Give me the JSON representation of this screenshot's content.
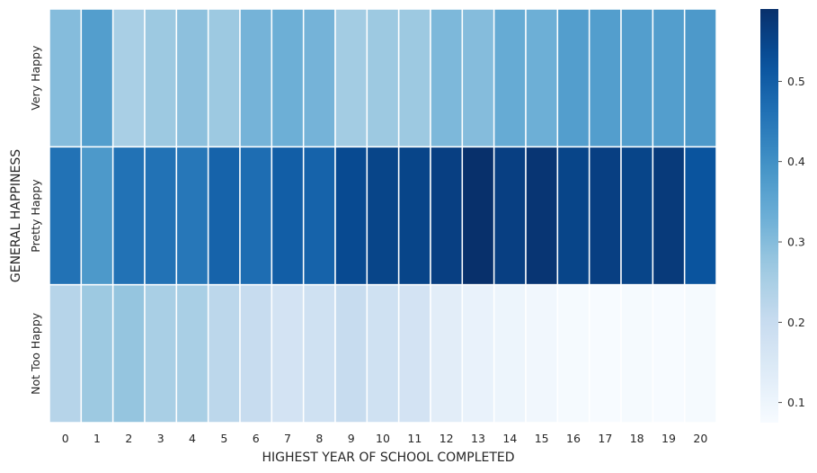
{
  "chart_data": {
    "type": "heatmap",
    "title": "",
    "xlabel": "HIGHEST YEAR OF SCHOOL COMPLETED",
    "ylabel": "GENERAL HAPPINESS",
    "x_categories": [
      "0",
      "1",
      "2",
      "3",
      "4",
      "5",
      "6",
      "7",
      "8",
      "9",
      "10",
      "11",
      "12",
      "13",
      "14",
      "15",
      "16",
      "17",
      "18",
      "19",
      "20"
    ],
    "y_categories": [
      "Very Happy",
      "Pretty Happy",
      "Not Too Happy"
    ],
    "values": [
      [
        0.3,
        0.37,
        0.25,
        0.27,
        0.29,
        0.27,
        0.32,
        0.33,
        0.32,
        0.26,
        0.27,
        0.27,
        0.31,
        0.3,
        0.34,
        0.33,
        0.37,
        0.37,
        0.37,
        0.37,
        0.38
      ],
      [
        0.46,
        0.38,
        0.46,
        0.46,
        0.45,
        0.49,
        0.47,
        0.5,
        0.49,
        0.54,
        0.55,
        0.55,
        0.56,
        0.59,
        0.56,
        0.58,
        0.55,
        0.56,
        0.55,
        0.57,
        0.52
      ],
      [
        0.23,
        0.27,
        0.28,
        0.25,
        0.25,
        0.22,
        0.2,
        0.17,
        0.18,
        0.2,
        0.18,
        0.17,
        0.13,
        0.11,
        0.1,
        0.09,
        0.08,
        0.07,
        0.08,
        0.07,
        0.08
      ]
    ],
    "colorbar": {
      "range": [
        0.075,
        0.59
      ],
      "ticks": [
        "0.1",
        "0.2",
        "0.3",
        "0.4",
        "0.5"
      ],
      "tick_values": [
        0.1,
        0.2,
        0.3,
        0.4,
        0.5
      ],
      "colormap": "Blues"
    },
    "grid": false,
    "cell_separator_color": "#ffffff"
  }
}
